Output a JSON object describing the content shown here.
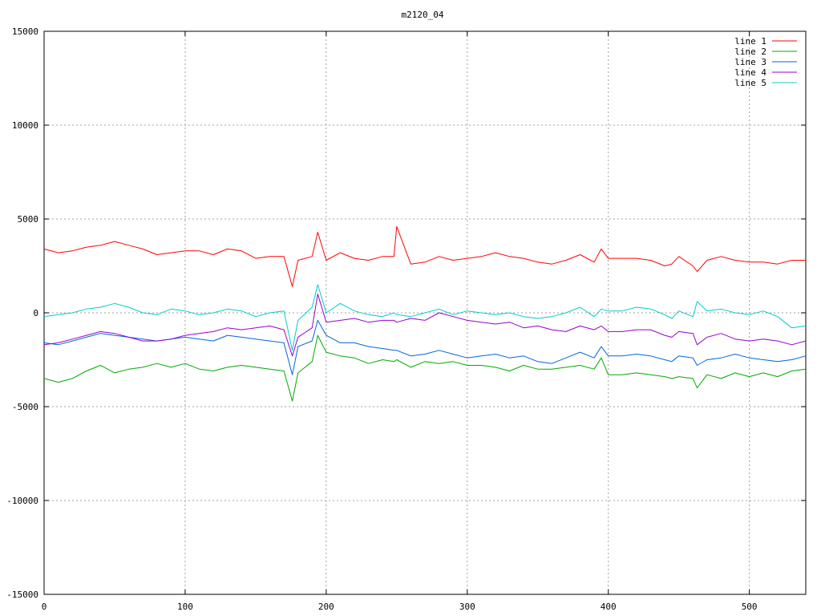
{
  "chart_data": {
    "type": "line",
    "title": "m2120_04",
    "xlabel": "",
    "ylabel": "",
    "xlim": [
      0,
      540
    ],
    "ylim": [
      -15000,
      15000
    ],
    "x_ticks": [
      0,
      100,
      200,
      300,
      400,
      500
    ],
    "y_ticks": [
      -15000,
      -10000,
      -5000,
      0,
      5000,
      10000,
      15000
    ],
    "grid": true,
    "legend_position": "top-right",
    "x": [
      0,
      10,
      20,
      30,
      40,
      50,
      60,
      70,
      80,
      90,
      100,
      110,
      120,
      130,
      140,
      150,
      160,
      170,
      176,
      180,
      190,
      194,
      200,
      210,
      220,
      230,
      240,
      248,
      250,
      260,
      270,
      280,
      290,
      300,
      310,
      320,
      330,
      340,
      350,
      360,
      370,
      380,
      390,
      395,
      400,
      410,
      420,
      430,
      440,
      445,
      450,
      460,
      463,
      470,
      480,
      490,
      500,
      510,
      520,
      530,
      540
    ],
    "series": [
      {
        "name": "line 1",
        "color": "#ff0000",
        "values": [
          3400,
          3200,
          3300,
          3500,
          3600,
          3800,
          3600,
          3400,
          3100,
          3200,
          3300,
          3300,
          3100,
          3400,
          3300,
          2900,
          3000,
          3000,
          1400,
          2800,
          3000,
          4300,
          2800,
          3200,
          2900,
          2800,
          3000,
          3000,
          4600,
          2600,
          2700,
          3000,
          2800,
          2900,
          3000,
          3200,
          3000,
          2900,
          2700,
          2600,
          2800,
          3100,
          2700,
          3400,
          2900,
          2900,
          2900,
          2800,
          2500,
          2600,
          3000,
          2500,
          2200,
          2800,
          3000,
          2800,
          2700,
          2700,
          2600,
          2800,
          2800
        ]
      },
      {
        "name": "line 2",
        "color": "#00aa00",
        "values": [
          -3500,
          -3700,
          -3500,
          -3100,
          -2800,
          -3200,
          -3000,
          -2900,
          -2700,
          -2900,
          -2700,
          -3000,
          -3100,
          -2900,
          -2800,
          -2900,
          -3000,
          -3100,
          -4700,
          -3200,
          -2600,
          -1200,
          -2100,
          -2300,
          -2400,
          -2700,
          -2500,
          -2600,
          -2500,
          -2900,
          -2600,
          -2700,
          -2600,
          -2800,
          -2800,
          -2900,
          -3100,
          -2800,
          -3000,
          -3000,
          -2900,
          -2800,
          -3000,
          -2400,
          -3300,
          -3300,
          -3200,
          -3300,
          -3400,
          -3500,
          -3400,
          -3500,
          -4000,
          -3300,
          -3500,
          -3200,
          -3400,
          -3200,
          -3400,
          -3100,
          -3000
        ]
      },
      {
        "name": "line 3",
        "color": "#0066dd",
        "values": [
          -1600,
          -1700,
          -1500,
          -1300,
          -1100,
          -1200,
          -1300,
          -1400,
          -1500,
          -1400,
          -1300,
          -1400,
          -1500,
          -1200,
          -1300,
          -1400,
          -1500,
          -1600,
          -3300,
          -1800,
          -1500,
          -400,
          -1200,
          -1600,
          -1600,
          -1800,
          -1900,
          -2000,
          -2000,
          -2300,
          -2200,
          -2000,
          -2200,
          -2400,
          -2300,
          -2200,
          -2400,
          -2300,
          -2600,
          -2700,
          -2400,
          -2100,
          -2400,
          -1800,
          -2300,
          -2300,
          -2200,
          -2300,
          -2500,
          -2600,
          -2300,
          -2400,
          -2800,
          -2500,
          -2400,
          -2200,
          -2400,
          -2500,
          -2600,
          -2500,
          -2300
        ]
      },
      {
        "name": "line 4",
        "color": "#9900cc",
        "values": [
          -1700,
          -1600,
          -1400,
          -1200,
          -1000,
          -1100,
          -1300,
          -1500,
          -1500,
          -1400,
          -1200,
          -1100,
          -1000,
          -800,
          -900,
          -800,
          -700,
          -900,
          -2300,
          -1300,
          -800,
          1000,
          -500,
          -400,
          -300,
          -500,
          -400,
          -400,
          -500,
          -300,
          -400,
          0,
          -200,
          -400,
          -500,
          -600,
          -500,
          -800,
          -700,
          -900,
          -1000,
          -700,
          -900,
          -700,
          -1000,
          -1000,
          -900,
          -900,
          -1200,
          -1300,
          -1000,
          -1100,
          -1700,
          -1300,
          -1100,
          -1400,
          -1500,
          -1400,
          -1500,
          -1700,
          -1500
        ]
      },
      {
        "name": "line 5",
        "color": "#00cccc",
        "values": [
          -200,
          -100,
          0,
          200,
          300,
          500,
          300,
          0,
          -100,
          200,
          100,
          -100,
          0,
          200,
          100,
          -200,
          0,
          100,
          -2000,
          -400,
          300,
          1500,
          0,
          500,
          100,
          -100,
          -200,
          0,
          -100,
          -200,
          0,
          200,
          -100,
          100,
          0,
          -100,
          0,
          -200,
          -300,
          -200,
          0,
          300,
          -200,
          200,
          100,
          100,
          300,
          200,
          -100,
          -300,
          100,
          -200,
          600,
          100,
          200,
          0,
          -100,
          100,
          -200,
          -800,
          -700
        ]
      }
    ]
  }
}
